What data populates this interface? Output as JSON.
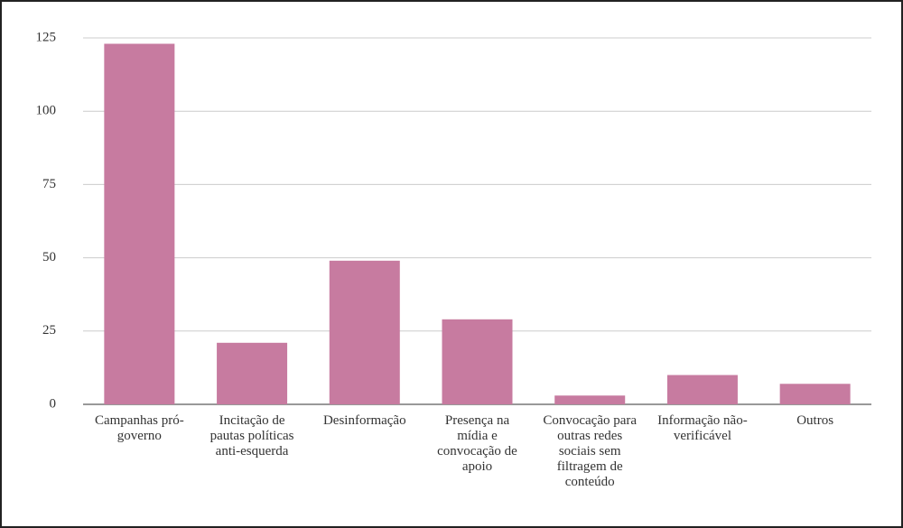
{
  "chart_data": {
    "type": "bar",
    "categories": [
      "Campanhas pró-governo",
      "Incitação de pautas políticas anti-esquerda",
      "Desinformação",
      "Presença na mídia e convocação de apoio",
      "Convocação para outras redes sociais sem filtragem de conteúdo",
      "Informação não-verificável",
      "Outros"
    ],
    "values": [
      123,
      21,
      49,
      29,
      3,
      10,
      7
    ],
    "color": "#c77ba0",
    "ylim": [
      0,
      125
    ],
    "yticks": [
      0,
      25,
      50,
      75,
      100,
      125
    ],
    "grid": true
  }
}
